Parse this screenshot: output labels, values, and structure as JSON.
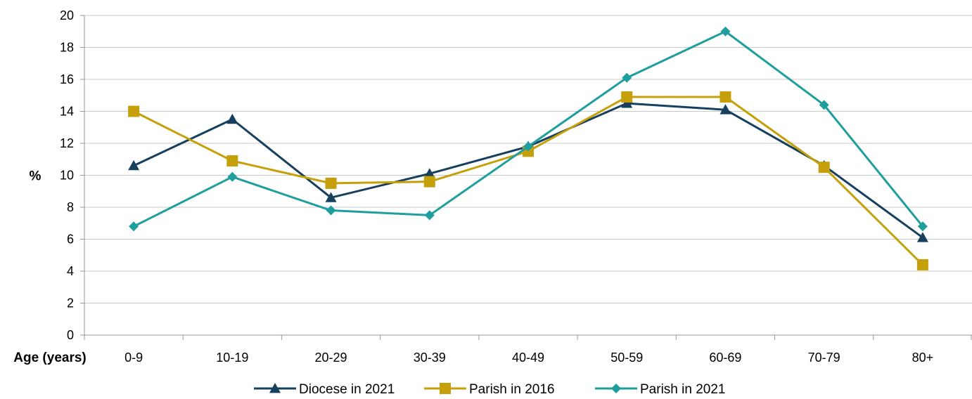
{
  "chart_data": {
    "type": "line",
    "title": "",
    "xlabel": "Age (years)",
    "ylabel": "%",
    "ylim": [
      0,
      20
    ],
    "yticks": [
      "0",
      "2",
      "4",
      "6",
      "8",
      "10",
      "12",
      "14",
      "16",
      "18",
      "20"
    ],
    "categories": [
      "0-9",
      "10-19",
      "20-29",
      "30-39",
      "40-49",
      "50-59",
      "60-69",
      "70-79",
      "80+"
    ],
    "grid": true,
    "legend_position": "bottom",
    "series": [
      {
        "name": "Diocese in 2021",
        "color": "#17405e",
        "marker": "triangle",
        "values": [
          10.6,
          13.5,
          8.6,
          10.1,
          11.8,
          14.5,
          14.1,
          10.6,
          6.1
        ]
      },
      {
        "name": "Parish in 2016",
        "color": "#c5a00a",
        "marker": "square",
        "values": [
          14.0,
          10.9,
          9.5,
          9.6,
          11.5,
          14.9,
          14.9,
          10.5,
          4.4
        ]
      },
      {
        "name": "Parish in 2021",
        "color": "#1f9e9e",
        "marker": "diamond",
        "values": [
          6.8,
          9.9,
          7.8,
          7.5,
          11.8,
          16.1,
          19.0,
          14.4,
          6.8
        ]
      }
    ]
  }
}
